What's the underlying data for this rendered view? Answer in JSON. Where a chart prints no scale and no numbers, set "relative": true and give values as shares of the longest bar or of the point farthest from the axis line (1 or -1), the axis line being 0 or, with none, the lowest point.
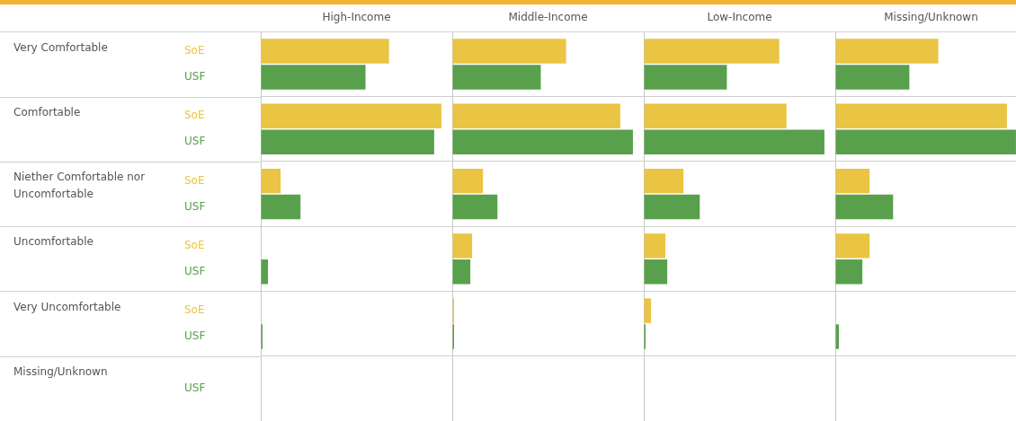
{
  "chart_data": [
    {
      "type": "bar",
      "orientation": "horizontal",
      "relative": true,
      "title": "High-Income",
      "grid": true,
      "tick_labels": "y",
      "categories": [
        "Very Comfortable",
        "Comfortable",
        "Niether Comfortable nor Uncomfortable",
        "Uncomfortable",
        "Very Uncomfortable",
        "Missing/Unknown"
      ],
      "series": [
        {
          "name": "SoE",
          "color": "#eac443",
          "values": [
            0.71,
            1,
            0.11,
            0,
            0,
            null
          ]
        },
        {
          "name": "USF",
          "color": "#58a04c",
          "values": [
            0.58,
            0.96,
            0.22,
            0.04,
            0.01,
            0
          ]
        }
      ]
    },
    {
      "type": "bar",
      "orientation": "horizontal",
      "relative": true,
      "title": "Middle-Income",
      "grid": true,
      "tick_labels": false,
      "categories": [
        null,
        null,
        null,
        null,
        null,
        null
      ],
      "series": [
        {
          "color": "#eac443",
          "values": [
            0.63,
            0.93,
            0.17,
            0.11,
            0.01,
            null
          ]
        },
        {
          "color": "#58a04c",
          "values": [
            0.49,
            1,
            0.25,
            0.1,
            0.01,
            0
          ]
        }
      ]
    },
    {
      "type": "bar",
      "orientation": "horizontal",
      "relative": true,
      "title": "Low-Income",
      "grid": true,
      "tick_labels": false,
      "categories": [
        null,
        null,
        null,
        null,
        null,
        null
      ],
      "series": [
        {
          "color": "#eac443",
          "values": [
            0.75,
            0.79,
            0.22,
            0.12,
            0.04,
            null
          ]
        },
        {
          "color": "#58a04c",
          "values": [
            0.46,
            1,
            0.31,
            0.13,
            0.01,
            0
          ]
        }
      ]
    },
    {
      "type": "bar",
      "orientation": "horizontal",
      "relative": true,
      "title": "Missing/Unknown",
      "grid": true,
      "tick_labels": false,
      "categories": [
        null,
        null,
        null,
        null,
        null,
        null
      ],
      "series": [
        {
          "color": "#eac443",
          "values": [
            0.57,
            0.95,
            0.19,
            0.19,
            0,
            null
          ]
        },
        {
          "color": "#58a04c",
          "values": [
            0.41,
            1,
            0.32,
            0.15,
            0.02,
            0
          ]
        }
      ]
    }
  ]
}
